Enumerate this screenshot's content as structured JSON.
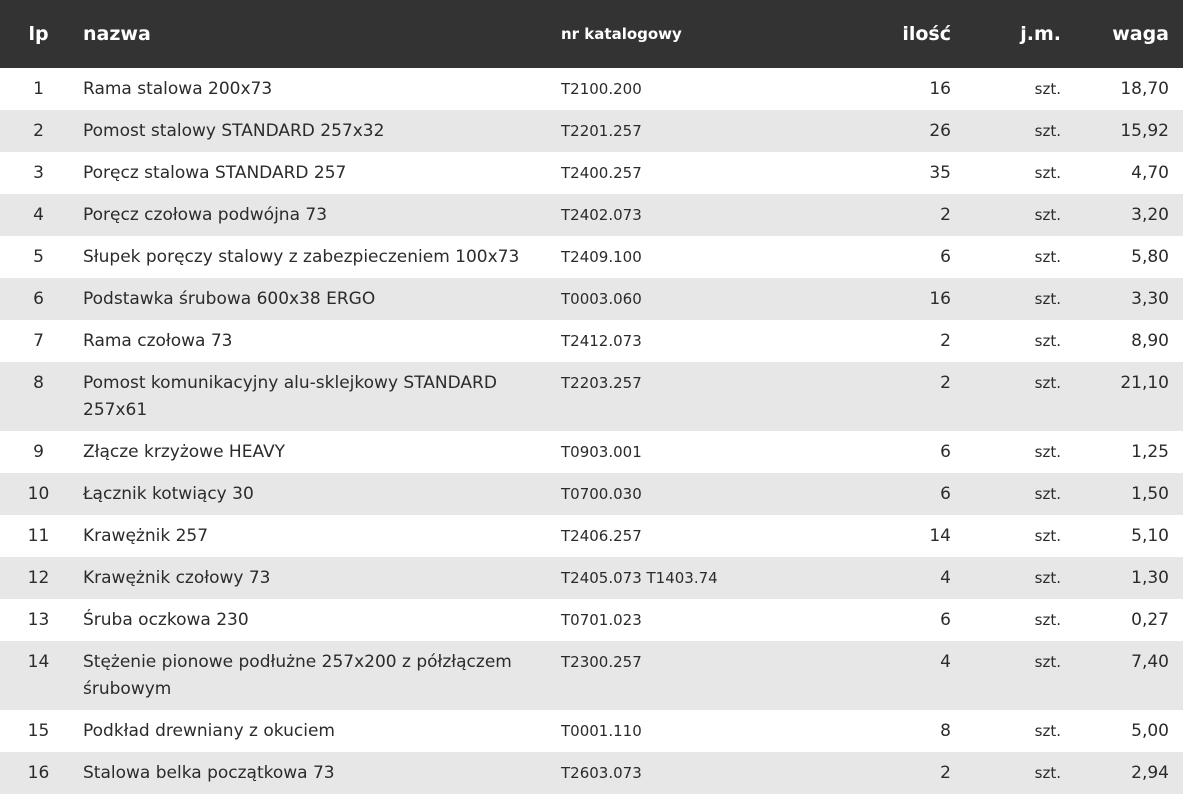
{
  "headers": {
    "lp": "lp",
    "name": "nazwa",
    "catalog": "nr katalogowy",
    "qty": "ilość",
    "unit": "j.m.",
    "weight": "waga"
  },
  "rows": [
    {
      "lp": "1",
      "name": "Rama stalowa 200x73",
      "catalog": "T2100.200",
      "qty": "16",
      "unit": "szt.",
      "weight": "18,70"
    },
    {
      "lp": "2",
      "name": "Pomost stalowy STANDARD 257x32",
      "catalog": "T2201.257",
      "qty": "26",
      "unit": "szt.",
      "weight": "15,92"
    },
    {
      "lp": "3",
      "name": "Poręcz stalowa STANDARD 257",
      "catalog": "T2400.257",
      "qty": "35",
      "unit": "szt.",
      "weight": "4,70"
    },
    {
      "lp": "4",
      "name": "Poręcz czołowa podwójna 73",
      "catalog": "T2402.073",
      "qty": "2",
      "unit": "szt.",
      "weight": "3,20"
    },
    {
      "lp": "5",
      "name": "Słupek poręczy stalowy z zabezpieczeniem 100x73",
      "catalog": "T2409.100",
      "qty": "6",
      "unit": "szt.",
      "weight": "5,80"
    },
    {
      "lp": "6",
      "name": "Podstawka śrubowa 600x38 ERGO",
      "catalog": "T0003.060",
      "qty": "16",
      "unit": "szt.",
      "weight": "3,30"
    },
    {
      "lp": "7",
      "name": "Rama czołowa 73",
      "catalog": "T2412.073",
      "qty": "2",
      "unit": "szt.",
      "weight": "8,90"
    },
    {
      "lp": "8",
      "name": "Pomost komunikacyjny alu-sklejkowy STANDARD 257x61",
      "catalog": "T2203.257",
      "qty": "2",
      "unit": "szt.",
      "weight": "21,10"
    },
    {
      "lp": "9",
      "name": "Złącze krzyżowe HEAVY",
      "catalog": "T0903.001",
      "qty": "6",
      "unit": "szt.",
      "weight": "1,25"
    },
    {
      "lp": "10",
      "name": "Łącznik kotwiący 30",
      "catalog": "T0700.030",
      "qty": "6",
      "unit": "szt.",
      "weight": "1,50"
    },
    {
      "lp": "11",
      "name": "Krawężnik 257",
      "catalog": "T2406.257",
      "qty": "14",
      "unit": "szt.",
      "weight": "5,10"
    },
    {
      "lp": "12",
      "name": "Krawężnik czołowy 73",
      "catalog": "T2405.073  T1403.74",
      "qty": "4",
      "unit": "szt.",
      "weight": "1,30"
    },
    {
      "lp": "13",
      "name": "Śruba oczkowa 230",
      "catalog": "T0701.023",
      "qty": "6",
      "unit": "szt.",
      "weight": "0,27"
    },
    {
      "lp": "14",
      "name": "Stężenie pionowe podłużne 257x200 z półzłączem śrubowym",
      "catalog": "T2300.257",
      "qty": "4",
      "unit": "szt.",
      "weight": "7,40"
    },
    {
      "lp": "15",
      "name": "Podkład drewniany z okuciem",
      "catalog": "T0001.110",
      "qty": "8",
      "unit": "szt.",
      "weight": "5,00"
    },
    {
      "lp": "16",
      "name": "Stalowa belka początkowa 73",
      "catalog": "T2603.073",
      "qty": "2",
      "unit": "szt.",
      "weight": "2,94"
    }
  ]
}
